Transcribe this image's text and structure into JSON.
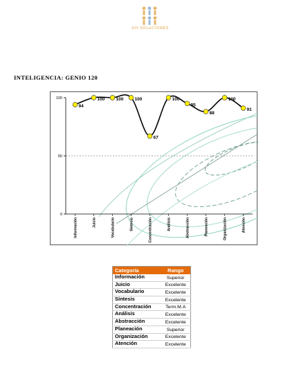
{
  "logo": {
    "text": "GH SOLUCIONES"
  },
  "heading": "INTELIGENCIA: GENIO 120",
  "chart_data": {
    "type": "line",
    "categories": [
      "Información",
      "Juicio",
      "Vocabulario",
      "Síntesis",
      "Concentración",
      "Análisis",
      "Abstracción",
      "Planeación",
      "Organización",
      "Atención"
    ],
    "values": [
      94,
      100,
      100,
      100,
      67,
      100,
      95,
      88,
      100,
      91
    ],
    "ylim": [
      0,
      100
    ],
    "yticks": [
      "0",
      "50",
      "100"
    ],
    "reference_line": 50,
    "line_color": "#000000",
    "marker_color": "#ffee00",
    "grid": false
  },
  "table": {
    "headers": [
      "Categoría",
      "Rango"
    ],
    "rows": [
      [
        "Información",
        "Superior"
      ],
      [
        "Juicio",
        "Excelente"
      ],
      [
        "Vocabulario",
        "Excelente"
      ],
      [
        "Síntesis",
        "Excelente"
      ],
      [
        "Concentración",
        "Term.M.A"
      ],
      [
        "Análisis",
        "Excelente"
      ],
      [
        "Abstracción",
        "Excelente"
      ],
      [
        "Planeación",
        "Superior"
      ],
      [
        "Organización",
        "Excelente"
      ],
      [
        "Atención",
        "Excelente"
      ]
    ],
    "header_color": "#e46c0a"
  }
}
